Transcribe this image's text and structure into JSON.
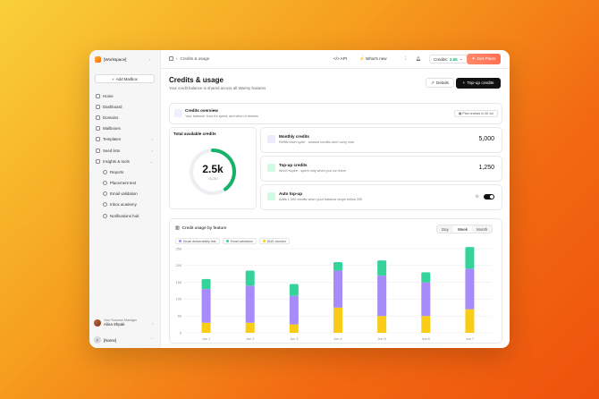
{
  "sidebar": {
    "workspace": "[Workspace]",
    "add_mailbox": "Add Mailbox",
    "items": [
      {
        "label": "Home",
        "name": "home"
      },
      {
        "label": "Dashboard",
        "name": "dashboard"
      },
      {
        "label": "Domains",
        "name": "domains"
      },
      {
        "label": "Mailboxes",
        "name": "mailboxes"
      },
      {
        "label": "Templates",
        "name": "templates"
      },
      {
        "label": "Seed lists",
        "name": "seed-lists"
      },
      {
        "label": "Insights & tools",
        "name": "insights-tools"
      }
    ],
    "sub_items": [
      {
        "label": "Reports",
        "name": "reports"
      },
      {
        "label": "Placement test",
        "name": "placement-test"
      },
      {
        "label": "Email validation",
        "name": "email-validation"
      },
      {
        "label": "Inbox academy",
        "name": "inbox-academy"
      },
      {
        "label": "Notifications hub",
        "name": "notifications-hub"
      }
    ],
    "csm_role": "Your Success Manager",
    "csm_name": "Alina Shpak",
    "user_initial": "F",
    "user_name": "[Name]"
  },
  "topbar": {
    "breadcrumb": "Credits & usage",
    "api": "API",
    "whats_new": "What's new",
    "credits_label": "Credits:",
    "credits_value": "2.5k",
    "get_plans": "Get Plans"
  },
  "page": {
    "title": "Credits & usage",
    "subtitle": "Your credit balance is shared across all Warmy features",
    "details": "Details",
    "topup": "Top-up credits"
  },
  "overview": {
    "title": "Credits overview",
    "subtitle": "Your balance: how it's spent, and when it renews",
    "renew": "Plan renews in 26 Jul"
  },
  "total": {
    "title": "Total available credits",
    "value": "2.5k",
    "sub": "/ 6,250",
    "fraction": 0.4
  },
  "rows": {
    "monthly": {
      "title": "Monthly credits",
      "sub": "Refills each cycle · unused credits don't carry over",
      "value": "5,000"
    },
    "topup": {
      "title": "Top-up credits",
      "sub": "Won't expire · spent only when you run them",
      "value": "1,250"
    },
    "auto": {
      "title": "Auto top-up",
      "sub": "Adds 1,000 credits when your balance drops below 200"
    }
  },
  "chart_card": {
    "title": "Credit usage by feature",
    "tabs": [
      "Day",
      "Week",
      "Month"
    ],
    "active_tab": "Week"
  },
  "colors": {
    "green": "#34d399",
    "purple": "#a78bfa",
    "yellow": "#facc15",
    "accent": "#17b26a"
  },
  "chart_data": {
    "type": "bar",
    "stacked": true,
    "categories": [
      "Jun 1",
      "Jun 2",
      "Jun 3",
      "Jun 4",
      "Jun 5",
      "Jun 6",
      "Jun 7"
    ],
    "series": [
      {
        "name": "Email deliverability test",
        "values": [
          30,
          30,
          25,
          75,
          50,
          50,
          70
        ],
        "color": "#facc15"
      },
      {
        "name": "Email validation",
        "values": [
          100,
          110,
          85,
          110,
          120,
          100,
          120
        ],
        "color": "#a78bfa"
      },
      {
        "name": "DNS checker",
        "values": [
          30,
          45,
          35,
          25,
          45,
          30,
          65
        ],
        "color": "#34d399"
      }
    ],
    "yticks": [
      0,
      50,
      100,
      150,
      200,
      250
    ],
    "ylim": [
      0,
      250
    ],
    "grid": true,
    "legend_position": "top-left"
  }
}
